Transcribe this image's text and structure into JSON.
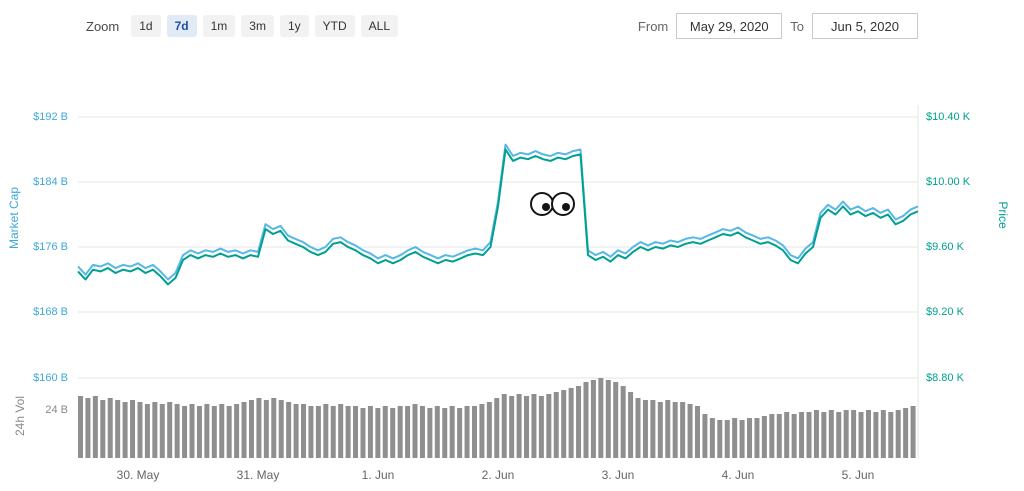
{
  "toolbar": {
    "zoom_label": "Zoom",
    "zoom_buttons": [
      {
        "label": "1d",
        "active": false
      },
      {
        "label": "7d",
        "active": true
      },
      {
        "label": "1m",
        "active": false
      },
      {
        "label": "3m",
        "active": false
      },
      {
        "label": "1y",
        "active": false
      },
      {
        "label": "YTD",
        "active": false
      },
      {
        "label": "ALL",
        "active": false
      }
    ],
    "from_label": "From",
    "from_value": "May 29, 2020",
    "to_label": "To",
    "to_value": "Jun 5, 2020"
  },
  "colors": {
    "market_cap_line": "#57B7E6",
    "market_cap_label": "#3DA8DC",
    "price_line": "#00A091",
    "price_label": "#00A091",
    "volume_bar": "#8F8F8F",
    "volume_label": "#8A8A8A",
    "grid": "#E6E6E6",
    "x_label": "#666666"
  },
  "sticker": {
    "name": "googly-eyes"
  },
  "chart_data": {
    "type": "line",
    "title": "",
    "x_description": "113 points, one per 1.5 hours, from May 29 2020 ~12:00 to Jun 5 2020 ~12:00",
    "x_tick_labels": [
      "30. May",
      "31. May",
      "1. Jun",
      "2. Jun",
      "3. Jun",
      "4. Jun",
      "5. Jun"
    ],
    "left_axis_title": "Market Cap",
    "right_axis_title": "Price",
    "volume_axis_title": "24h Vol",
    "left_tick_labels": [
      "$192 B",
      "$184 B",
      "$176 B",
      "$168 B",
      "$160 B"
    ],
    "right_tick_labels": [
      "$10.40 K",
      "$10.00 K",
      "$9.60 K",
      "$9.20 K",
      "$8.80 K"
    ],
    "volume_tick_label": "24 B",
    "left_axis_range_B": [
      160,
      192
    ],
    "right_axis_range_K": [
      8.8,
      10.4
    ],
    "volume_tick_B": 24,
    "grid": "horizontal-only",
    "legend": "none",
    "series": [
      {
        "name": "Market Cap",
        "unit": "billion USD",
        "style": "line",
        "values": [
          173.6,
          172.6,
          173.8,
          173.6,
          174.0,
          173.4,
          173.8,
          173.6,
          174.0,
          173.4,
          173.8,
          173.0,
          172.0,
          172.8,
          175.0,
          175.6,
          175.2,
          175.6,
          175.4,
          175.8,
          175.4,
          175.6,
          175.2,
          175.6,
          175.4,
          178.8,
          178.2,
          178.6,
          177.4,
          177.0,
          176.6,
          176.0,
          175.6,
          176.0,
          177.0,
          177.2,
          176.6,
          176.2,
          175.6,
          175.2,
          174.6,
          175.0,
          174.6,
          175.0,
          175.6,
          176.0,
          175.4,
          175.0,
          174.6,
          175.0,
          174.8,
          175.2,
          175.6,
          175.8,
          175.6,
          176.6,
          181.6,
          188.6,
          187.2,
          187.6,
          187.4,
          187.8,
          187.4,
          187.2,
          187.6,
          187.4,
          187.8,
          188.0,
          175.6,
          175.0,
          175.4,
          174.8,
          175.6,
          175.2,
          176.0,
          176.6,
          176.2,
          176.6,
          176.4,
          176.8,
          176.6,
          177.0,
          177.2,
          177.0,
          177.4,
          177.8,
          178.2,
          178.0,
          178.4,
          177.8,
          177.4,
          177.0,
          177.2,
          176.8,
          176.2,
          175.0,
          174.6,
          175.8,
          176.6,
          180.2,
          181.2,
          180.6,
          181.6,
          180.6,
          181.0,
          180.4,
          180.8,
          180.2,
          180.6,
          179.4,
          179.8,
          180.6,
          181.0
        ]
      },
      {
        "name": "Price",
        "unit": "thousand USD",
        "style": "line",
        "values": [
          9.45,
          9.4,
          9.46,
          9.45,
          9.47,
          9.44,
          9.46,
          9.45,
          9.47,
          9.44,
          9.46,
          9.42,
          9.37,
          9.41,
          9.52,
          9.55,
          9.53,
          9.55,
          9.54,
          9.56,
          9.54,
          9.55,
          9.53,
          9.55,
          9.54,
          9.71,
          9.68,
          9.7,
          9.64,
          9.62,
          9.6,
          9.57,
          9.55,
          9.57,
          9.62,
          9.63,
          9.6,
          9.58,
          9.55,
          9.53,
          9.5,
          9.52,
          9.5,
          9.52,
          9.55,
          9.57,
          9.54,
          9.52,
          9.5,
          9.52,
          9.51,
          9.53,
          9.55,
          9.56,
          9.55,
          9.6,
          9.85,
          10.2,
          10.13,
          10.15,
          10.14,
          10.16,
          10.14,
          10.13,
          10.15,
          10.14,
          10.16,
          10.17,
          9.55,
          9.52,
          9.54,
          9.51,
          9.55,
          9.53,
          9.57,
          9.6,
          9.58,
          9.6,
          9.59,
          9.61,
          9.6,
          9.62,
          9.63,
          9.62,
          9.64,
          9.66,
          9.68,
          9.67,
          9.69,
          9.66,
          9.64,
          9.62,
          9.63,
          9.61,
          9.58,
          9.52,
          9.5,
          9.56,
          9.6,
          9.78,
          9.83,
          9.8,
          9.85,
          9.8,
          9.82,
          9.79,
          9.81,
          9.78,
          9.8,
          9.74,
          9.76,
          9.8,
          9.82
        ]
      },
      {
        "name": "24h Vol",
        "unit": "billion USD",
        "style": "bar",
        "values": [
          31,
          30,
          31,
          29,
          30,
          29,
          28,
          29,
          28,
          27,
          28,
          27,
          28,
          27,
          26,
          27,
          26,
          27,
          26,
          27,
          26,
          27,
          28,
          29,
          30,
          29,
          30,
          29,
          28,
          27,
          27,
          26,
          26,
          27,
          26,
          27,
          26,
          26,
          25,
          26,
          25,
          26,
          25,
          26,
          26,
          27,
          26,
          25,
          26,
          25,
          26,
          25,
          26,
          26,
          27,
          28,
          30,
          32,
          31,
          32,
          31,
          32,
          31,
          32,
          33,
          34,
          35,
          36,
          38,
          39,
          40,
          39,
          38,
          36,
          33,
          30,
          29,
          29,
          28,
          29,
          28,
          28,
          27,
          26,
          22,
          20,
          19,
          19,
          20,
          19,
          20,
          20,
          21,
          22,
          22,
          23,
          22,
          23,
          23,
          24,
          23,
          24,
          23,
          24,
          24,
          23,
          24,
          23,
          24,
          23,
          24,
          25,
          26
        ]
      }
    ]
  }
}
